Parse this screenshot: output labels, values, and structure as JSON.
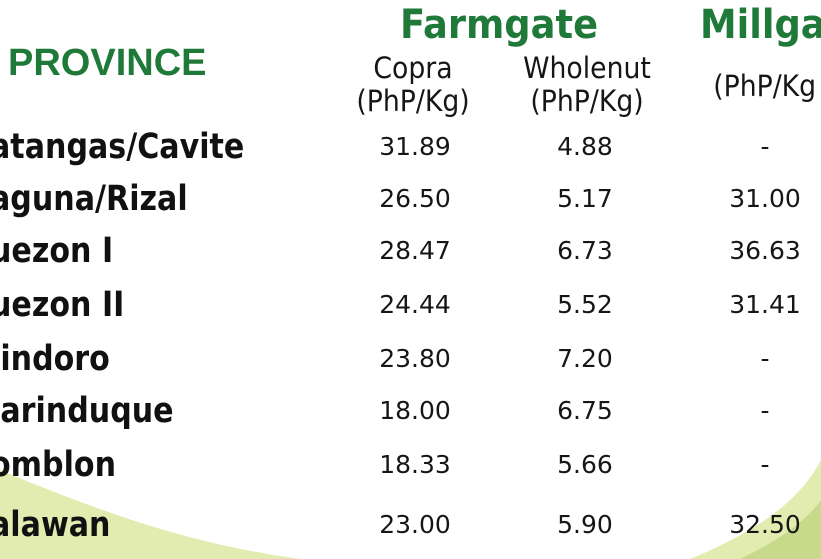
{
  "header": {
    "farmgate_title": "Farmgate",
    "millgate_title": "Millgat",
    "province_label": "PROVINCE",
    "copra_label_line1": "Copra",
    "copra_label_line2": "(PhP/Kg)",
    "wholenut_label_line1": "Wholenut",
    "wholenut_label_line2": "(PhP/Kg)",
    "millgate_unit": "(PhP/Kg"
  },
  "colors": {
    "accent_green": "#1f7a3a",
    "swoosh_light": "#e2ecb0",
    "swoosh_dark": "#c7d98a"
  },
  "rows": [
    {
      "province": "atangas/Cavite",
      "copra": "31.89",
      "wholenut": "4.88",
      "millgate": "-"
    },
    {
      "province": "aguna/Rizal",
      "copra": "26.50",
      "wholenut": "5.17",
      "millgate": "31.00"
    },
    {
      "province": "uezon I",
      "copra": "28.47",
      "wholenut": "6.73",
      "millgate": "36.63"
    },
    {
      "province": "uezon II",
      "copra": "24.44",
      "wholenut": "5.52",
      "millgate": "31.41"
    },
    {
      "province": "lindoro",
      "copra": "23.80",
      "wholenut": "7.20",
      "millgate": "-"
    },
    {
      "province": "larinduque",
      "copra": "18.00",
      "wholenut": "6.75",
      "millgate": "-"
    },
    {
      "province": "omblon",
      "copra": "18.33",
      "wholenut": "5.66",
      "millgate": "-"
    },
    {
      "province": "alawan",
      "copra": "23.00",
      "wholenut": "5.90",
      "millgate": "32.50"
    }
  ]
}
